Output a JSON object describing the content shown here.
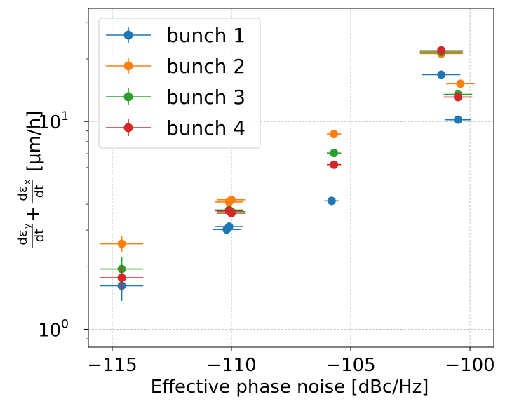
{
  "chart_data": {
    "type": "scatter",
    "xlabel": "Effective phase noise [dBc/Hz]",
    "ylabel_parts": {
      "y_term_num": "dε",
      "y_term_sub": "y",
      "y_term_den": "dt",
      "plus": "+",
      "x_term_num": "dε",
      "x_term_sub": "x",
      "x_term_den": "dt",
      "unit": "[μm/h]"
    },
    "x_ticks": [
      -115,
      -110,
      -105,
      -100
    ],
    "x_tick_labels": [
      "−115",
      "−110",
      "−105",
      "−100"
    ],
    "y_ticks": [
      1,
      10
    ],
    "y_tick_labels": [
      "10",
      "0",
      "10",
      "1"
    ],
    "xlim": [
      -116,
      -99
    ],
    "ylim": [
      0.82,
      35
    ],
    "y_scale": "log",
    "grid": true,
    "legend_position": "top-left",
    "series": [
      {
        "name": "bunch 1",
        "color": "#1f77b4",
        "points": [
          {
            "x": -114.6,
            "y": 1.62,
            "xerr": 0.9,
            "yerr": 0.25
          },
          {
            "x": -110.2,
            "y": 3.02,
            "xerr": 0.6,
            "yerr": 0.08
          },
          {
            "x": -110.1,
            "y": 3.12,
            "xerr": 0.6,
            "yerr": 0.08
          },
          {
            "x": -105.8,
            "y": 4.15,
            "xerr": 0.3,
            "yerr": 0.1
          },
          {
            "x": -101.2,
            "y": 16.8,
            "xerr": 0.8,
            "yerr": 0.3
          },
          {
            "x": -100.5,
            "y": 10.2,
            "xerr": 0.55,
            "yerr": 0.25
          }
        ]
      },
      {
        "name": "bunch 2",
        "color": "#ff7f0e",
        "points": [
          {
            "x": -114.6,
            "y": 2.58,
            "xerr": 0.9,
            "yerr": 0.22
          },
          {
            "x": -110.1,
            "y": 4.1,
            "xerr": 0.6,
            "yerr": 0.1
          },
          {
            "x": -110.0,
            "y": 4.2,
            "xerr": 0.6,
            "yerr": 0.1
          },
          {
            "x": -105.7,
            "y": 8.7,
            "xerr": 0.3,
            "yerr": 0.2
          },
          {
            "x": -101.2,
            "y": 21.2,
            "xerr": 0.9,
            "yerr": 0.4
          },
          {
            "x": -100.4,
            "y": 15.2,
            "xerr": 0.6,
            "yerr": 0.3
          }
        ]
      },
      {
        "name": "bunch 3",
        "color": "#2ca02c",
        "points": [
          {
            "x": -114.6,
            "y": 1.95,
            "xerr": 0.9,
            "yerr": 0.28
          },
          {
            "x": -110.1,
            "y": 3.75,
            "xerr": 0.6,
            "yerr": 0.1
          },
          {
            "x": -110.0,
            "y": 3.68,
            "xerr": 0.6,
            "yerr": 0.1
          },
          {
            "x": -105.7,
            "y": 7.05,
            "xerr": 0.3,
            "yerr": 0.15
          },
          {
            "x": -101.2,
            "y": 21.6,
            "xerr": 0.9,
            "yerr": 0.4
          },
          {
            "x": -100.5,
            "y": 13.5,
            "xerr": 0.6,
            "yerr": 0.3
          }
        ]
      },
      {
        "name": "bunch 4",
        "color": "#d62728",
        "points": [
          {
            "x": -114.6,
            "y": 1.77,
            "xerr": 0.9,
            "yerr": 0.22
          },
          {
            "x": -110.1,
            "y": 3.72,
            "xerr": 0.6,
            "yerr": 0.1
          },
          {
            "x": -110.0,
            "y": 3.62,
            "xerr": 0.6,
            "yerr": 0.1
          },
          {
            "x": -105.7,
            "y": 6.2,
            "xerr": 0.3,
            "yerr": 0.15
          },
          {
            "x": -101.2,
            "y": 22.0,
            "xerr": 0.9,
            "yerr": 0.4
          },
          {
            "x": -100.5,
            "y": 13.1,
            "xerr": 0.6,
            "yerr": 0.3
          }
        ]
      }
    ]
  }
}
